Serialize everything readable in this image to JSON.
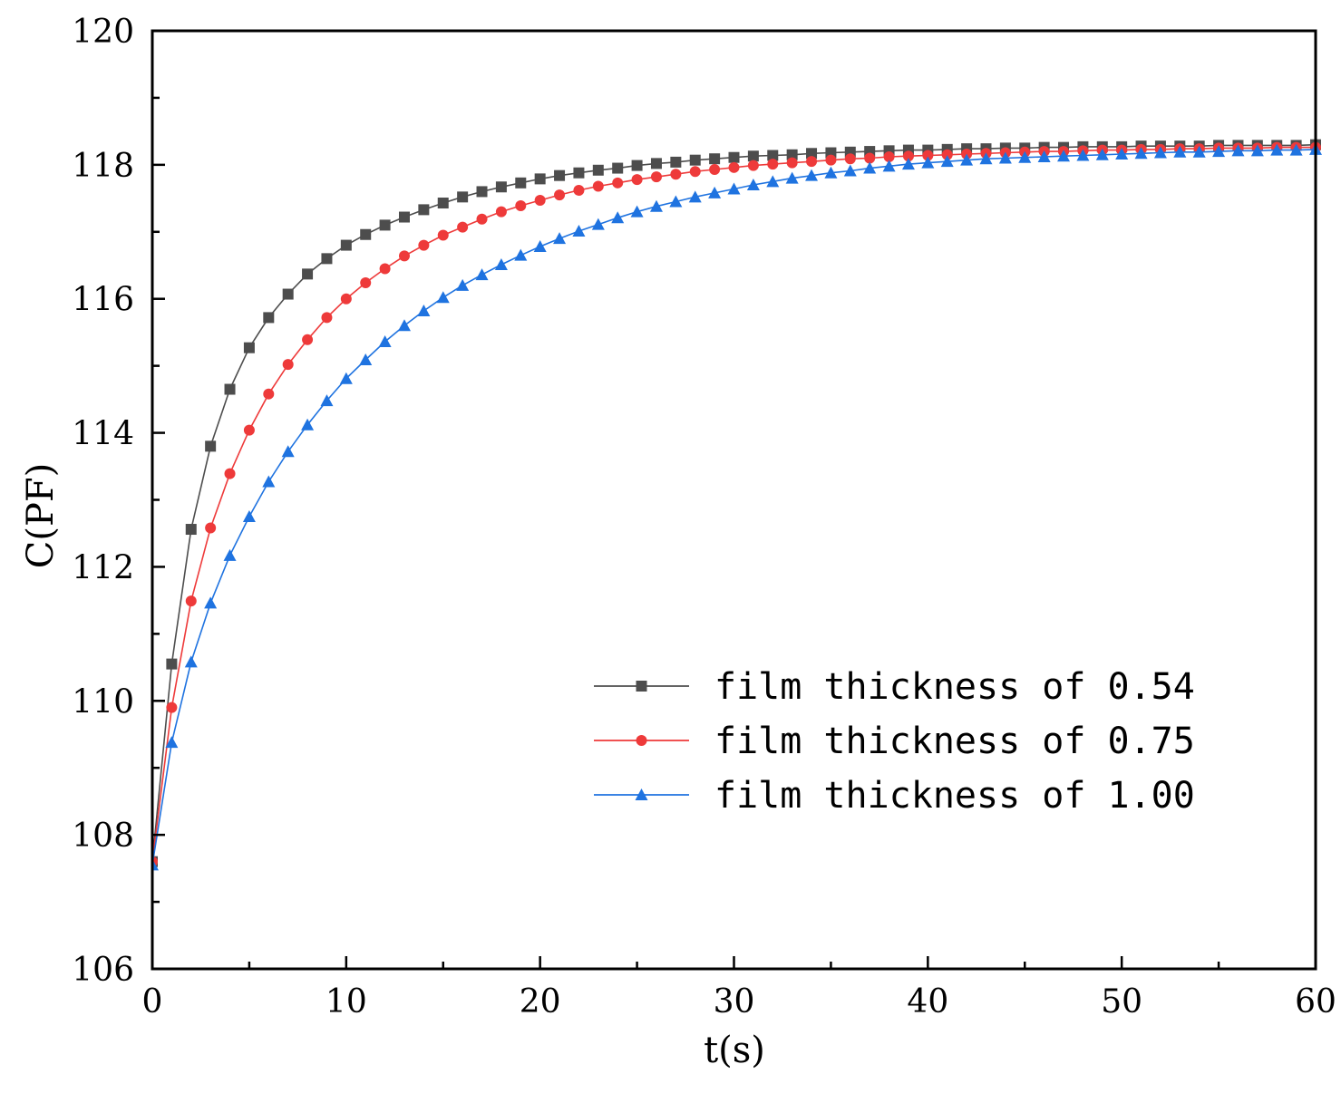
{
  "chart_data": {
    "type": "line",
    "title": "",
    "xlabel": "t(s)",
    "ylabel": "C(PF)",
    "xlim": [
      0,
      60
    ],
    "ylim": [
      106,
      120
    ],
    "x_ticks": [
      0,
      10,
      20,
      30,
      40,
      50,
      60
    ],
    "y_ticks": [
      106,
      108,
      110,
      112,
      114,
      116,
      118,
      120
    ],
    "grid": false,
    "legend_position": "bottom-right",
    "x": [
      0,
      1,
      2,
      3,
      4,
      5,
      6,
      7,
      8,
      9,
      10,
      11,
      12,
      13,
      14,
      15,
      16,
      17,
      18,
      19,
      20,
      21,
      22,
      23,
      24,
      25,
      26,
      27,
      28,
      29,
      30,
      31,
      32,
      33,
      34,
      35,
      36,
      37,
      38,
      39,
      40,
      41,
      42,
      43,
      44,
      45,
      46,
      47,
      48,
      49,
      50,
      51,
      52,
      53,
      54,
      55,
      56,
      57,
      58,
      59,
      60
    ],
    "series": [
      {
        "name": "film thickness of 0.54",
        "color": "#4d4d4d",
        "marker": "square",
        "values": [
          107.6,
          110.55,
          112.56,
          113.8,
          114.65,
          115.27,
          115.72,
          116.07,
          116.37,
          116.6,
          116.8,
          116.96,
          117.1,
          117.22,
          117.33,
          117.43,
          117.52,
          117.6,
          117.67,
          117.73,
          117.79,
          117.84,
          117.88,
          117.92,
          117.95,
          117.99,
          118.02,
          118.04,
          118.07,
          118.09,
          118.11,
          118.13,
          118.14,
          118.15,
          118.17,
          118.18,
          118.19,
          118.2,
          118.21,
          118.22,
          118.22,
          118.23,
          118.24,
          118.24,
          118.25,
          118.25,
          118.26,
          118.26,
          118.27,
          118.27,
          118.27,
          118.28,
          118.28,
          118.28,
          118.28,
          118.29,
          118.29,
          118.29,
          118.29,
          118.29,
          118.3
        ]
      },
      {
        "name": "film thickness of 0.75",
        "color": "#ee3a3a",
        "marker": "circle",
        "values": [
          107.6,
          109.9,
          111.49,
          112.58,
          113.39,
          114.04,
          114.58,
          115.02,
          115.39,
          115.72,
          116.0,
          116.24,
          116.45,
          116.64,
          116.8,
          116.95,
          117.07,
          117.19,
          117.3,
          117.39,
          117.47,
          117.55,
          117.62,
          117.68,
          117.73,
          117.78,
          117.82,
          117.86,
          117.9,
          117.93,
          117.96,
          117.99,
          118.01,
          118.03,
          118.05,
          118.07,
          118.09,
          118.1,
          118.12,
          118.13,
          118.14,
          118.15,
          118.16,
          118.17,
          118.18,
          118.19,
          118.2,
          118.2,
          118.21,
          118.22,
          118.22,
          118.23,
          118.23,
          118.24,
          118.24,
          118.25,
          118.25,
          118.25,
          118.26,
          118.26,
          118.26
        ]
      },
      {
        "name": "film thickness of 1.00",
        "color": "#1f73e0",
        "marker": "triangle",
        "values": [
          107.55,
          109.38,
          110.58,
          111.46,
          112.17,
          112.75,
          113.27,
          113.72,
          114.12,
          114.48,
          114.81,
          115.09,
          115.36,
          115.6,
          115.82,
          116.02,
          116.2,
          116.36,
          116.51,
          116.65,
          116.78,
          116.9,
          117.01,
          117.11,
          117.21,
          117.3,
          117.38,
          117.45,
          117.52,
          117.58,
          117.64,
          117.7,
          117.75,
          117.8,
          117.84,
          117.88,
          117.91,
          117.95,
          117.98,
          118.01,
          118.03,
          118.05,
          118.07,
          118.09,
          118.1,
          118.11,
          118.12,
          118.13,
          118.14,
          118.15,
          118.16,
          118.17,
          118.18,
          118.19,
          118.19,
          118.2,
          118.21,
          118.21,
          118.22,
          118.22,
          118.23
        ]
      }
    ]
  }
}
